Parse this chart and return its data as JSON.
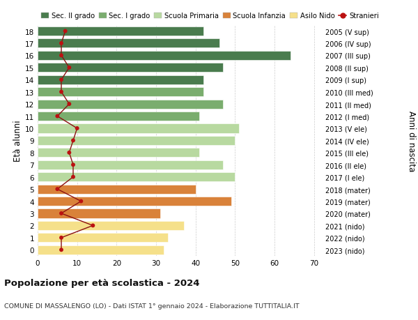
{
  "ages": [
    18,
    17,
    16,
    15,
    14,
    13,
    12,
    11,
    10,
    9,
    8,
    7,
    6,
    5,
    4,
    3,
    2,
    1,
    0
  ],
  "right_labels": [
    "2005 (V sup)",
    "2006 (IV sup)",
    "2007 (III sup)",
    "2008 (II sup)",
    "2009 (I sup)",
    "2010 (III med)",
    "2011 (II med)",
    "2012 (I med)",
    "2013 (V ele)",
    "2014 (IV ele)",
    "2015 (III ele)",
    "2016 (II ele)",
    "2017 (I ele)",
    "2018 (mater)",
    "2019 (mater)",
    "2020 (mater)",
    "2021 (nido)",
    "2022 (nido)",
    "2023 (nido)"
  ],
  "bar_values": [
    42,
    46,
    64,
    47,
    42,
    42,
    47,
    41,
    51,
    50,
    41,
    47,
    50,
    40,
    49,
    31,
    37,
    33,
    32
  ],
  "bar_colors": [
    "#4a7c4e",
    "#4a7c4e",
    "#4a7c4e",
    "#4a7c4e",
    "#4a7c4e",
    "#7aad6e",
    "#7aad6e",
    "#7aad6e",
    "#b8d9a0",
    "#b8d9a0",
    "#b8d9a0",
    "#b8d9a0",
    "#b8d9a0",
    "#d9823a",
    "#d9823a",
    "#d9823a",
    "#f5e08a",
    "#f5e08a",
    "#f5e08a"
  ],
  "stranieri_values": [
    7,
    6,
    6,
    8,
    6,
    6,
    8,
    5,
    10,
    9,
    8,
    9,
    9,
    5,
    11,
    6,
    14,
    6,
    6
  ],
  "legend_labels": [
    "Sec. II grado",
    "Sec. I grado",
    "Scuola Primaria",
    "Scuola Infanzia",
    "Asilo Nido",
    "Stranieri"
  ],
  "legend_colors": [
    "#4a7c4e",
    "#7aad6e",
    "#b8d9a0",
    "#d9823a",
    "#f5e08a",
    "#bb1111"
  ],
  "ylabel_left": "Età alunni",
  "ylabel_right": "Anni di nascita",
  "title": "Popolazione per età scolastica - 2024",
  "subtitle": "COMUNE DI MASSALENGO (LO) - Dati ISTAT 1° gennaio 2024 - Elaborazione TUTTITALIA.IT",
  "xlim": [
    0,
    72
  ],
  "xticks": [
    0,
    10,
    20,
    30,
    40,
    50,
    60,
    70
  ],
  "bg_color": "#ffffff"
}
